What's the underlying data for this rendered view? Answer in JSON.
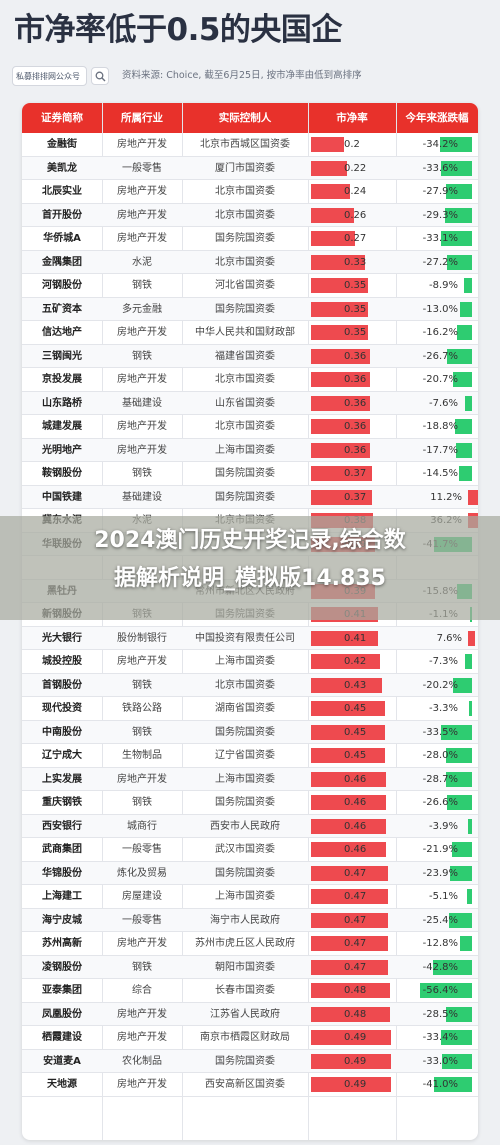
{
  "header": {
    "title": "市净率低于0.5的央国企",
    "brand": "私募排排网公众号",
    "source_note": "资料来源: Choice, 截至6月25日, 按市净率由低到高排序"
  },
  "table": {
    "columns": [
      "证券简称",
      "所属行业",
      "实际控制人",
      "市净率",
      "今年来涨跌幅"
    ],
    "rows": [
      {
        "name": "金融街",
        "industry": "房地产开发",
        "controller": "北京市西城区国资委",
        "pb": "0.2",
        "change": "-34.2%"
      },
      {
        "name": "美凯龙",
        "industry": "一般零售",
        "controller": "厦门市国资委",
        "pb": "0.22",
        "change": "-33.6%"
      },
      {
        "name": "北辰实业",
        "industry": "房地产开发",
        "controller": "北京市国资委",
        "pb": "0.24",
        "change": "-27.9%"
      },
      {
        "name": "首开股份",
        "industry": "房地产开发",
        "controller": "北京市国资委",
        "pb": "0.26",
        "change": "-29.3%"
      },
      {
        "name": "华侨城A",
        "industry": "房地产开发",
        "controller": "国务院国资委",
        "pb": "0.27",
        "change": "-33.1%"
      },
      {
        "name": "金隅集团",
        "industry": "水泥",
        "controller": "北京市国资委",
        "pb": "0.33",
        "change": "-27.2%"
      },
      {
        "name": "河钢股份",
        "industry": "钢铁",
        "controller": "河北省国资委",
        "pb": "0.35",
        "change": "-8.9%"
      },
      {
        "name": "五矿资本",
        "industry": "多元金融",
        "controller": "国务院国资委",
        "pb": "0.35",
        "change": "-13.0%"
      },
      {
        "name": "信达地产",
        "industry": "房地产开发",
        "controller": "中华人民共和国财政部",
        "pb": "0.35",
        "change": "-16.2%"
      },
      {
        "name": "三钢闽光",
        "industry": "钢铁",
        "controller": "福建省国资委",
        "pb": "0.36",
        "change": "-26.7%"
      },
      {
        "name": "京投发展",
        "industry": "房地产开发",
        "controller": "北京市国资委",
        "pb": "0.36",
        "change": "-20.7%"
      },
      {
        "name": "山东路桥",
        "industry": "基础建设",
        "controller": "山东省国资委",
        "pb": "0.36",
        "change": "-7.6%"
      },
      {
        "name": "城建发展",
        "industry": "房地产开发",
        "controller": "北京市国资委",
        "pb": "0.36",
        "change": "-18.8%"
      },
      {
        "name": "光明地产",
        "industry": "房地产开发",
        "controller": "上海市国资委",
        "pb": "0.36",
        "change": "-17.7%"
      },
      {
        "name": "鞍钢股份",
        "industry": "钢铁",
        "controller": "国务院国资委",
        "pb": "0.37",
        "change": "-14.5%"
      },
      {
        "name": "中国铁建",
        "industry": "基础建设",
        "controller": "国务院国资委",
        "pb": "0.37",
        "change": "11.2%"
      },
      {
        "name": "冀东水泥",
        "industry": "水泥",
        "controller": "北京市国资委",
        "pb": "0.38",
        "change": "36.2%"
      },
      {
        "name": "华联股份",
        "industry": "",
        "controller": "",
        "pb": "0.39",
        "change": "-41.7%"
      },
      {
        "name": "",
        "industry": "",
        "controller": "",
        "pb": "",
        "change": ""
      },
      {
        "name": "黑牡丹",
        "industry": "",
        "controller": "常州市新北区人民政府",
        "pb": "0.39",
        "change": "-15.8%"
      },
      {
        "name": "新钢股份",
        "industry": "钢铁",
        "controller": "国务院国资委",
        "pb": "0.41",
        "change": "-1.1%"
      },
      {
        "name": "光大银行",
        "industry": "股份制银行",
        "controller": "中国投资有限责任公司",
        "pb": "0.41",
        "change": "7.6%"
      },
      {
        "name": "城投控股",
        "industry": "房地产开发",
        "controller": "上海市国资委",
        "pb": "0.42",
        "change": "-7.3%"
      },
      {
        "name": "首钢股份",
        "industry": "钢铁",
        "controller": "北京市国资委",
        "pb": "0.43",
        "change": "-20.2%"
      },
      {
        "name": "现代投资",
        "industry": "铁路公路",
        "controller": "湖南省国资委",
        "pb": "0.45",
        "change": "-3.3%"
      },
      {
        "name": "中南股份",
        "industry": "钢铁",
        "controller": "国务院国资委",
        "pb": "0.45",
        "change": "-33.5%"
      },
      {
        "name": "辽宁成大",
        "industry": "生物制品",
        "controller": "辽宁省国资委",
        "pb": "0.45",
        "change": "-28.0%"
      },
      {
        "name": "上实发展",
        "industry": "房地产开发",
        "controller": "上海市国资委",
        "pb": "0.46",
        "change": "-28.7%"
      },
      {
        "name": "重庆钢铁",
        "industry": "钢铁",
        "controller": "国务院国资委",
        "pb": "0.46",
        "change": "-26.6%"
      },
      {
        "name": "西安银行",
        "industry": "城商行",
        "controller": "西安市人民政府",
        "pb": "0.46",
        "change": "-3.9%"
      },
      {
        "name": "武商集团",
        "industry": "一般零售",
        "controller": "武汉市国资委",
        "pb": "0.46",
        "change": "-21.9%"
      },
      {
        "name": "华锦股份",
        "industry": "炼化及贸易",
        "controller": "国务院国资委",
        "pb": "0.47",
        "change": "-23.9%"
      },
      {
        "name": "上海建工",
        "industry": "房屋建设",
        "controller": "上海市国资委",
        "pb": "0.47",
        "change": "-5.1%"
      },
      {
        "name": "海宁皮城",
        "industry": "一般零售",
        "controller": "海宁市人民政府",
        "pb": "0.47",
        "change": "-25.4%"
      },
      {
        "name": "苏州高新",
        "industry": "房地产开发",
        "controller": "苏州市虎丘区人民政府",
        "pb": "0.47",
        "change": "-12.8%"
      },
      {
        "name": "凌钢股份",
        "industry": "钢铁",
        "controller": "朝阳市国资委",
        "pb": "0.47",
        "change": "-42.8%"
      },
      {
        "name": "亚泰集团",
        "industry": "综合",
        "controller": "长春市国资委",
        "pb": "0.48",
        "change": "-56.4%"
      },
      {
        "name": "凤凰股份",
        "industry": "房地产开发",
        "controller": "江苏省人民政府",
        "pb": "0.48",
        "change": "-28.5%"
      },
      {
        "name": "栖霞建设",
        "industry": "房地产开发",
        "controller": "南京市栖霞区财政局",
        "pb": "0.49",
        "change": "-33.4%"
      },
      {
        "name": "安道麦A",
        "industry": "农化制品",
        "controller": "国务院国资委",
        "pb": "0.49",
        "change": "-33.0%"
      },
      {
        "name": "天地源",
        "industry": "房地产开发",
        "controller": "西安高新区国资委",
        "pb": "0.49",
        "change": "-41.0%"
      }
    ]
  },
  "colors": {
    "header_red": "#e8312b",
    "pb_bar": "#ee4a4f",
    "gain_bar": "#ee4a4f",
    "loss_bar": "#2ecc71"
  },
  "banner": {
    "line1": "2024澳门历史开奖记录,综合数",
    "line2": "据解析说明_模拟版14.835"
  }
}
